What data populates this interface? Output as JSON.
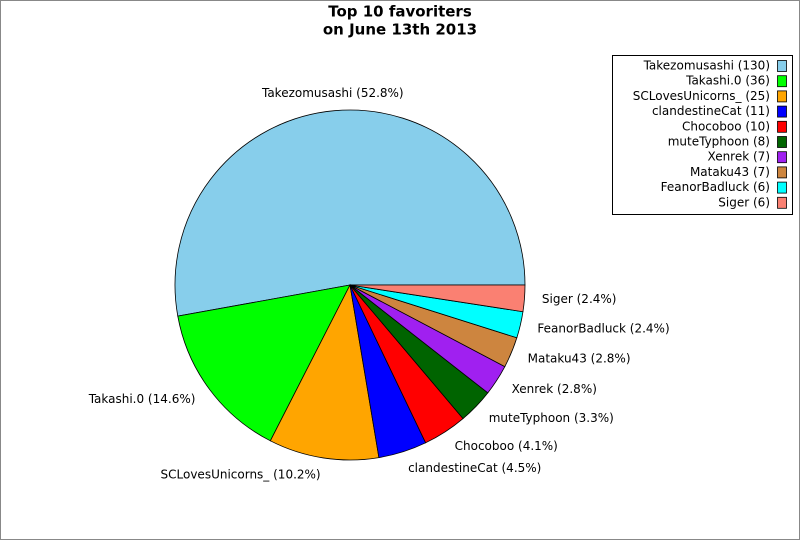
{
  "chart_data": {
    "type": "pie",
    "title": [
      "Top 10 favoriters",
      "on June 13th 2013"
    ],
    "categories": [
      "Takezomusashi",
      "Takashi.0",
      "SCLovesUnicorns_",
      "clandestineCat",
      "Chocoboo",
      "muteTyphoon",
      "Xenrek",
      "Mataku43",
      "FeanorBadluck",
      "Siger"
    ],
    "values": [
      130,
      36,
      25,
      11,
      10,
      8,
      7,
      7,
      6,
      6
    ],
    "value_labels": [
      "Takezomusashi (52.8%)",
      "Takashi.0 (14.6%)",
      "SCLovesUnicorns_ (10.2%)",
      "clandestineCat (4.5%)",
      "Chocoboo (4.1%)",
      "muteTyphoon (3.3%)",
      "Xenrek (2.8%)",
      "Mataku43 (2.8%)",
      "FeanorBadluck (2.4%)",
      "Siger (2.4%)"
    ],
    "legend_labels": [
      "Takezomusashi (130)",
      "Takashi.0 (36)",
      "SCLovesUnicorns_ (25)",
      "clandestineCat (11)",
      "Chocoboo (10)",
      "muteTyphoon (8)",
      "Xenrek (7)",
      "Mataku43 (7)",
      "FeanorBadluck (6)",
      "Siger (6)"
    ],
    "colors": [
      "#87ceeb",
      "#00ff00",
      "#ffa500",
      "#0000ff",
      "#ff0000",
      "#006400",
      "#a020f0",
      "#cd853f",
      "#00ffff",
      "#fa8072"
    ],
    "legend": "upper right"
  }
}
